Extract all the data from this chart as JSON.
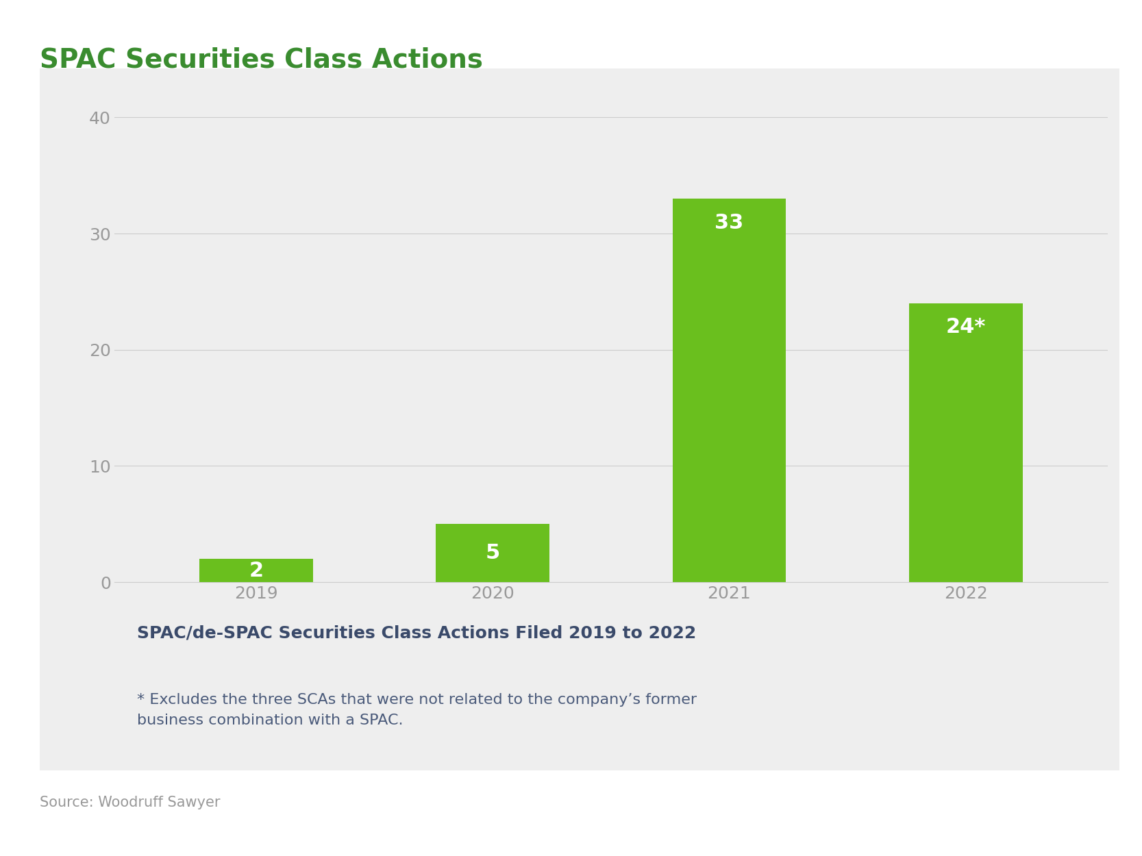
{
  "title": "SPAC Securities Class Actions",
  "categories": [
    "2019",
    "2020",
    "2021",
    "2022"
  ],
  "values": [
    2,
    5,
    33,
    24
  ],
  "bar_labels": [
    "2",
    "5",
    "33",
    "24*"
  ],
  "bar_color": "#6abf1e",
  "background_color": "#eeeeee",
  "outer_background": "#ffffff",
  "title_color": "#3a8c2f",
  "tick_label_color": "#999999",
  "bar_label_color": "#ffffff",
  "ylim": [
    0,
    42
  ],
  "yticks": [
    0,
    10,
    20,
    30,
    40
  ],
  "caption_title": "SPAC/de-SPAC Securities Class Actions Filed 2019 to 2022",
  "caption_note": "* Excludes the three SCAs that were not related to the company’s former\nbusiness combination with a SPAC.",
  "source": "Source: Woodruff Sawyer",
  "title_fontsize": 28,
  "tick_fontsize": 18,
  "bar_label_fontsize": 22,
  "caption_title_fontsize": 18,
  "caption_note_fontsize": 16,
  "source_fontsize": 15,
  "caption_title_color": "#3a4a6a",
  "caption_note_color": "#4a5a7a",
  "source_color": "#999999",
  "grid_color": "#cccccc"
}
